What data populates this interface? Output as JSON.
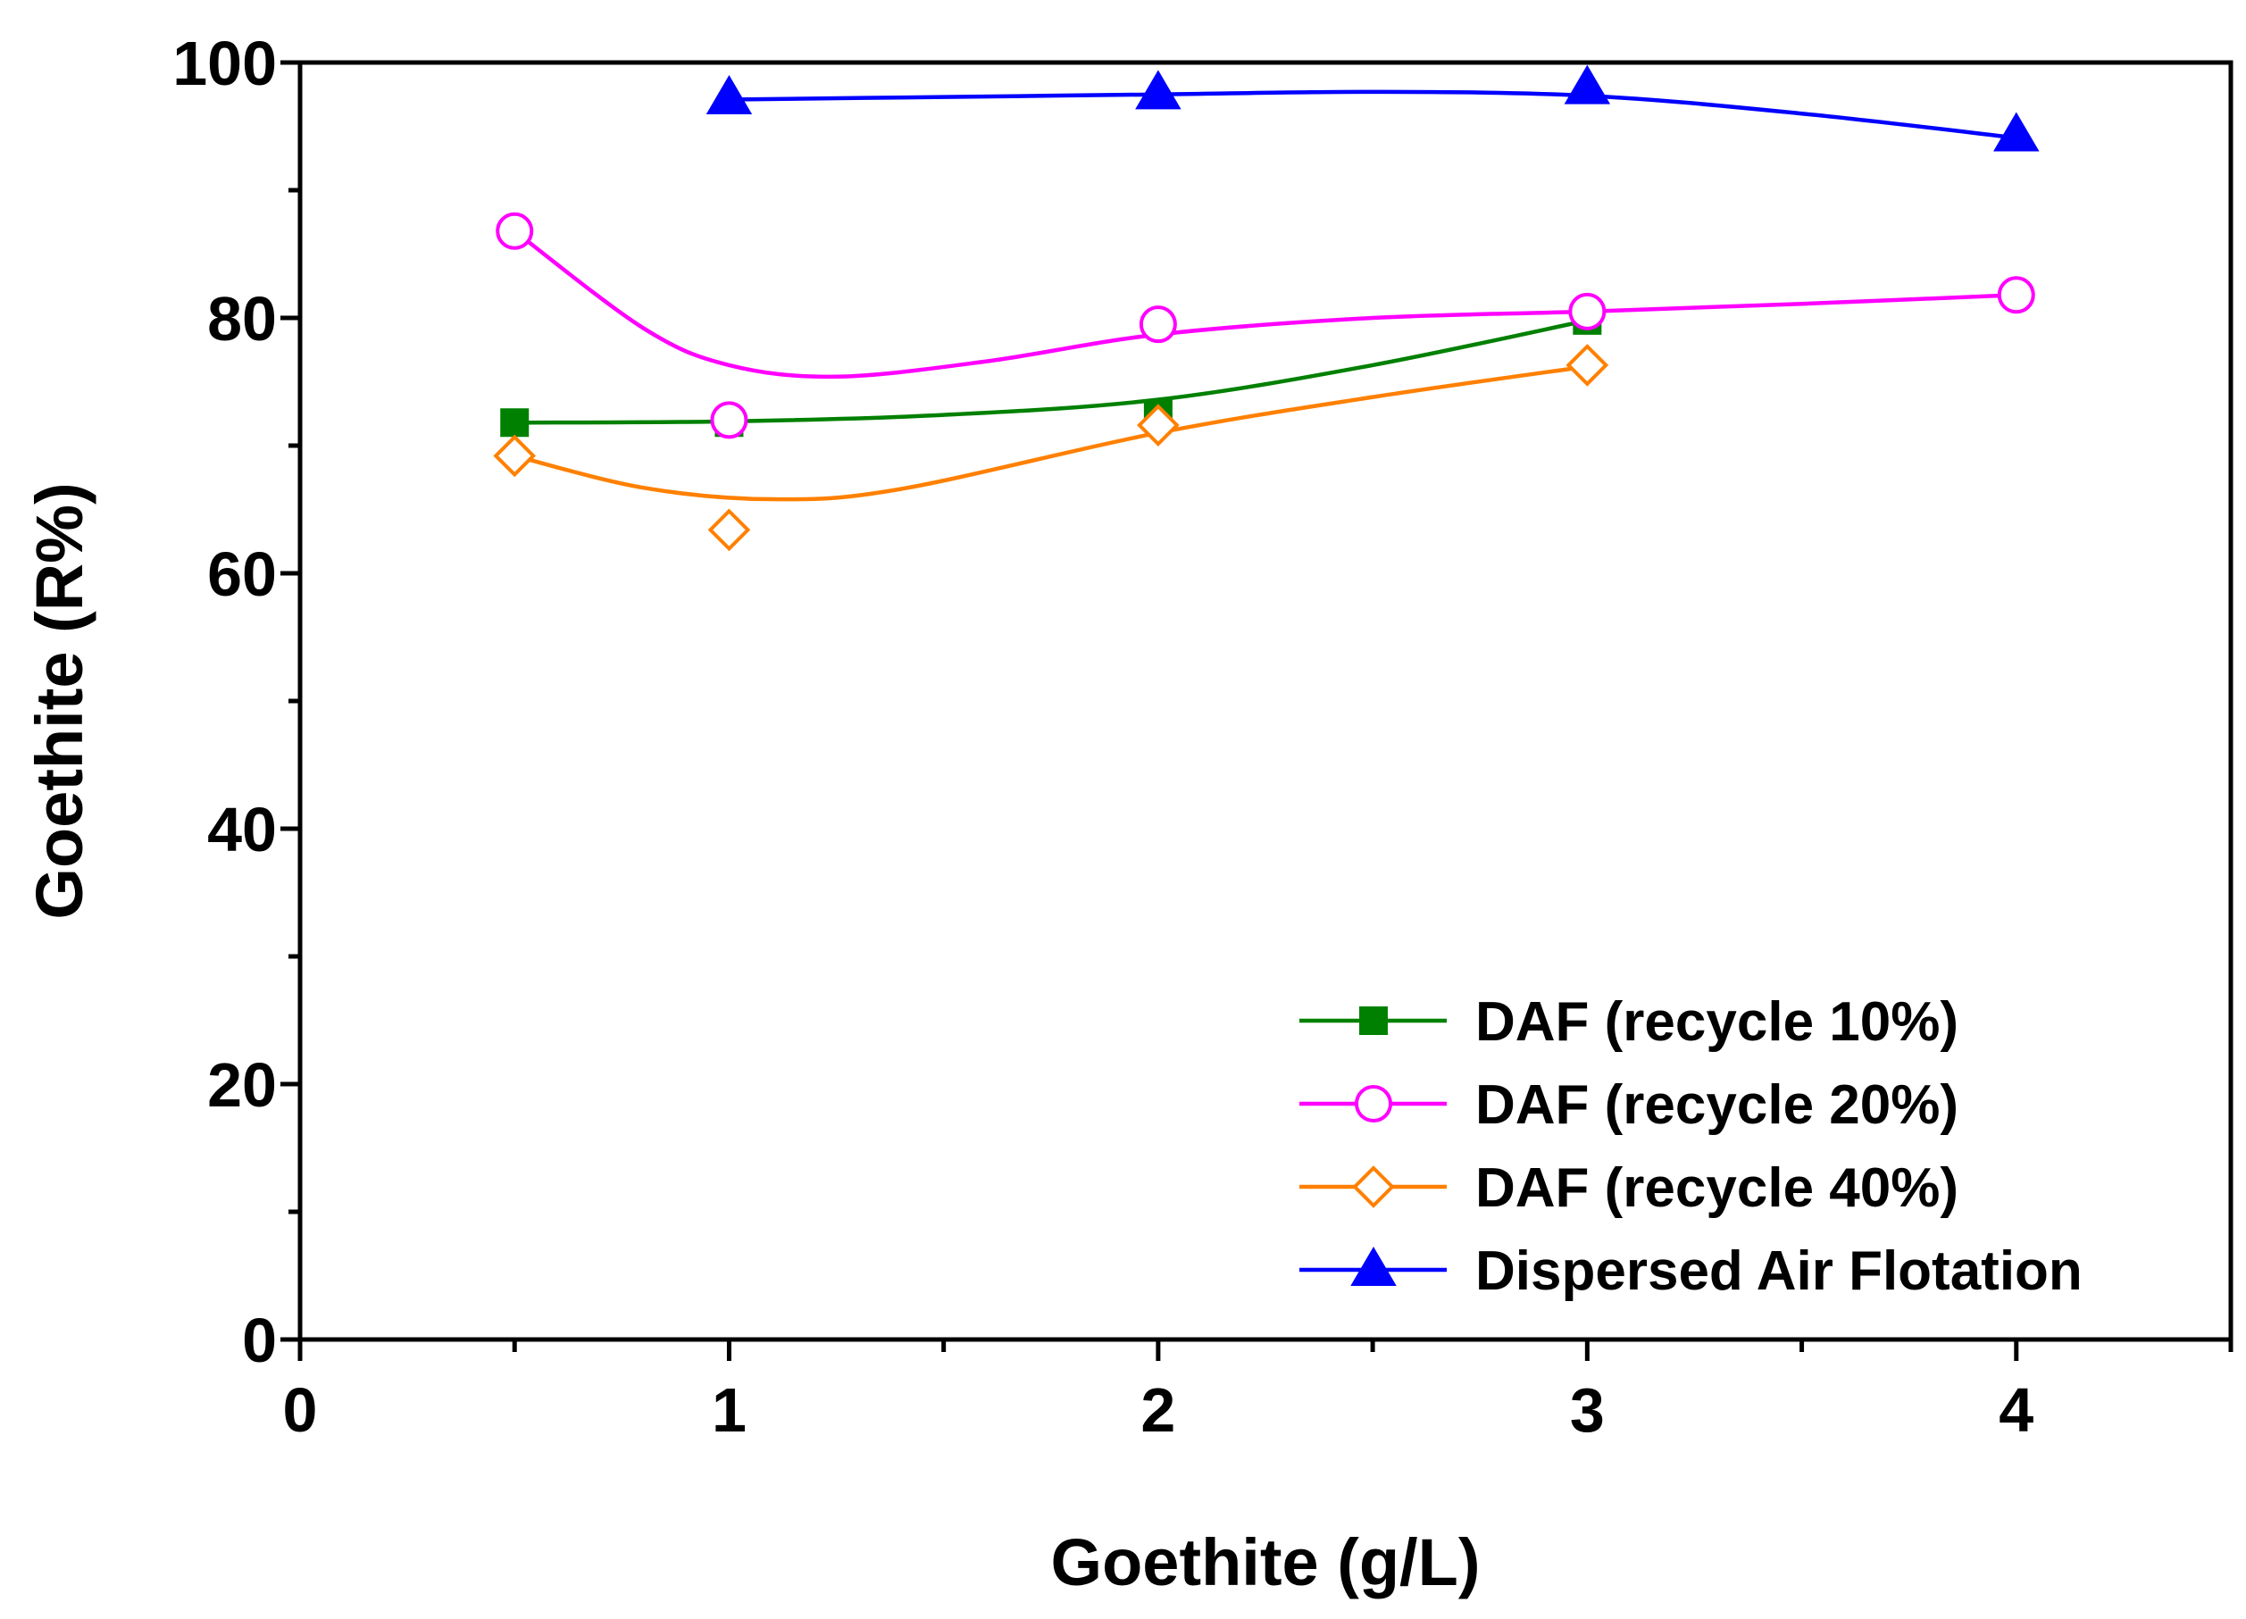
{
  "chart_data": {
    "type": "line",
    "title": "",
    "xlabel": "Goethite (g/L)",
    "ylabel": "Goethite (R%)",
    "xlim": [
      0,
      4.5
    ],
    "ylim": [
      0,
      100
    ],
    "xticks": [
      0,
      1,
      2,
      3,
      4
    ],
    "yticks": [
      0,
      20,
      40,
      60,
      80,
      100
    ],
    "x_minor_step": 0.5,
    "y_minor_step": 10,
    "grid": false,
    "legend_position": "bottom-right",
    "series": [
      {
        "name": "DAF (recycle 10%)",
        "color": "#008000",
        "marker": "filled-square",
        "x": [
          0.5,
          1,
          2,
          3
        ],
        "y": [
          71.8,
          71.8,
          72.5,
          79.8
        ],
        "curve_x": [
          0.5,
          1.0,
          1.5,
          2.0,
          2.5,
          3.0
        ],
        "curve_y": [
          71.8,
          71.9,
          72.4,
          73.6,
          76.3,
          79.8
        ]
      },
      {
        "name": "DAF (recycle 20%)",
        "color": "#FF00FF",
        "marker": "open-circle",
        "x": [
          0.5,
          1,
          2,
          3,
          4
        ],
        "y": [
          86.8,
          72.0,
          79.5,
          80.5,
          81.8
        ],
        "curve_x": [
          0.5,
          0.8,
          1.0,
          1.25,
          1.6,
          2.0,
          2.5,
          3.0,
          3.5,
          4.0
        ],
        "curve_y": [
          86.8,
          79.2,
          76.3,
          75.4,
          76.6,
          78.7,
          80.0,
          80.5,
          81.1,
          81.8
        ]
      },
      {
        "name": "DAF (recycle 40%)",
        "color": "#FF8000",
        "marker": "open-diamond",
        "x": [
          0.5,
          1,
          2,
          3
        ],
        "y": [
          69.2,
          63.4,
          71.6,
          76.3
        ],
        "curve_x": [
          0.5,
          0.8,
          1.1,
          1.4,
          2.0,
          2.5,
          3.0
        ],
        "curve_y": [
          69.2,
          66.7,
          65.8,
          66.6,
          71.0,
          73.8,
          76.2
        ]
      },
      {
        "name": "Dispersed Air Flotation",
        "color": "#0000FF",
        "marker": "filled-triangle",
        "x": [
          1,
          2,
          3,
          4
        ],
        "y": [
          97.2,
          97.6,
          98.0,
          94.3
        ],
        "curve_x": [
          1.0,
          1.5,
          2.0,
          2.5,
          3.0,
          3.5,
          4.0
        ],
        "curve_y": [
          97.1,
          97.3,
          97.5,
          97.7,
          97.4,
          96.0,
          94.1
        ]
      }
    ]
  }
}
